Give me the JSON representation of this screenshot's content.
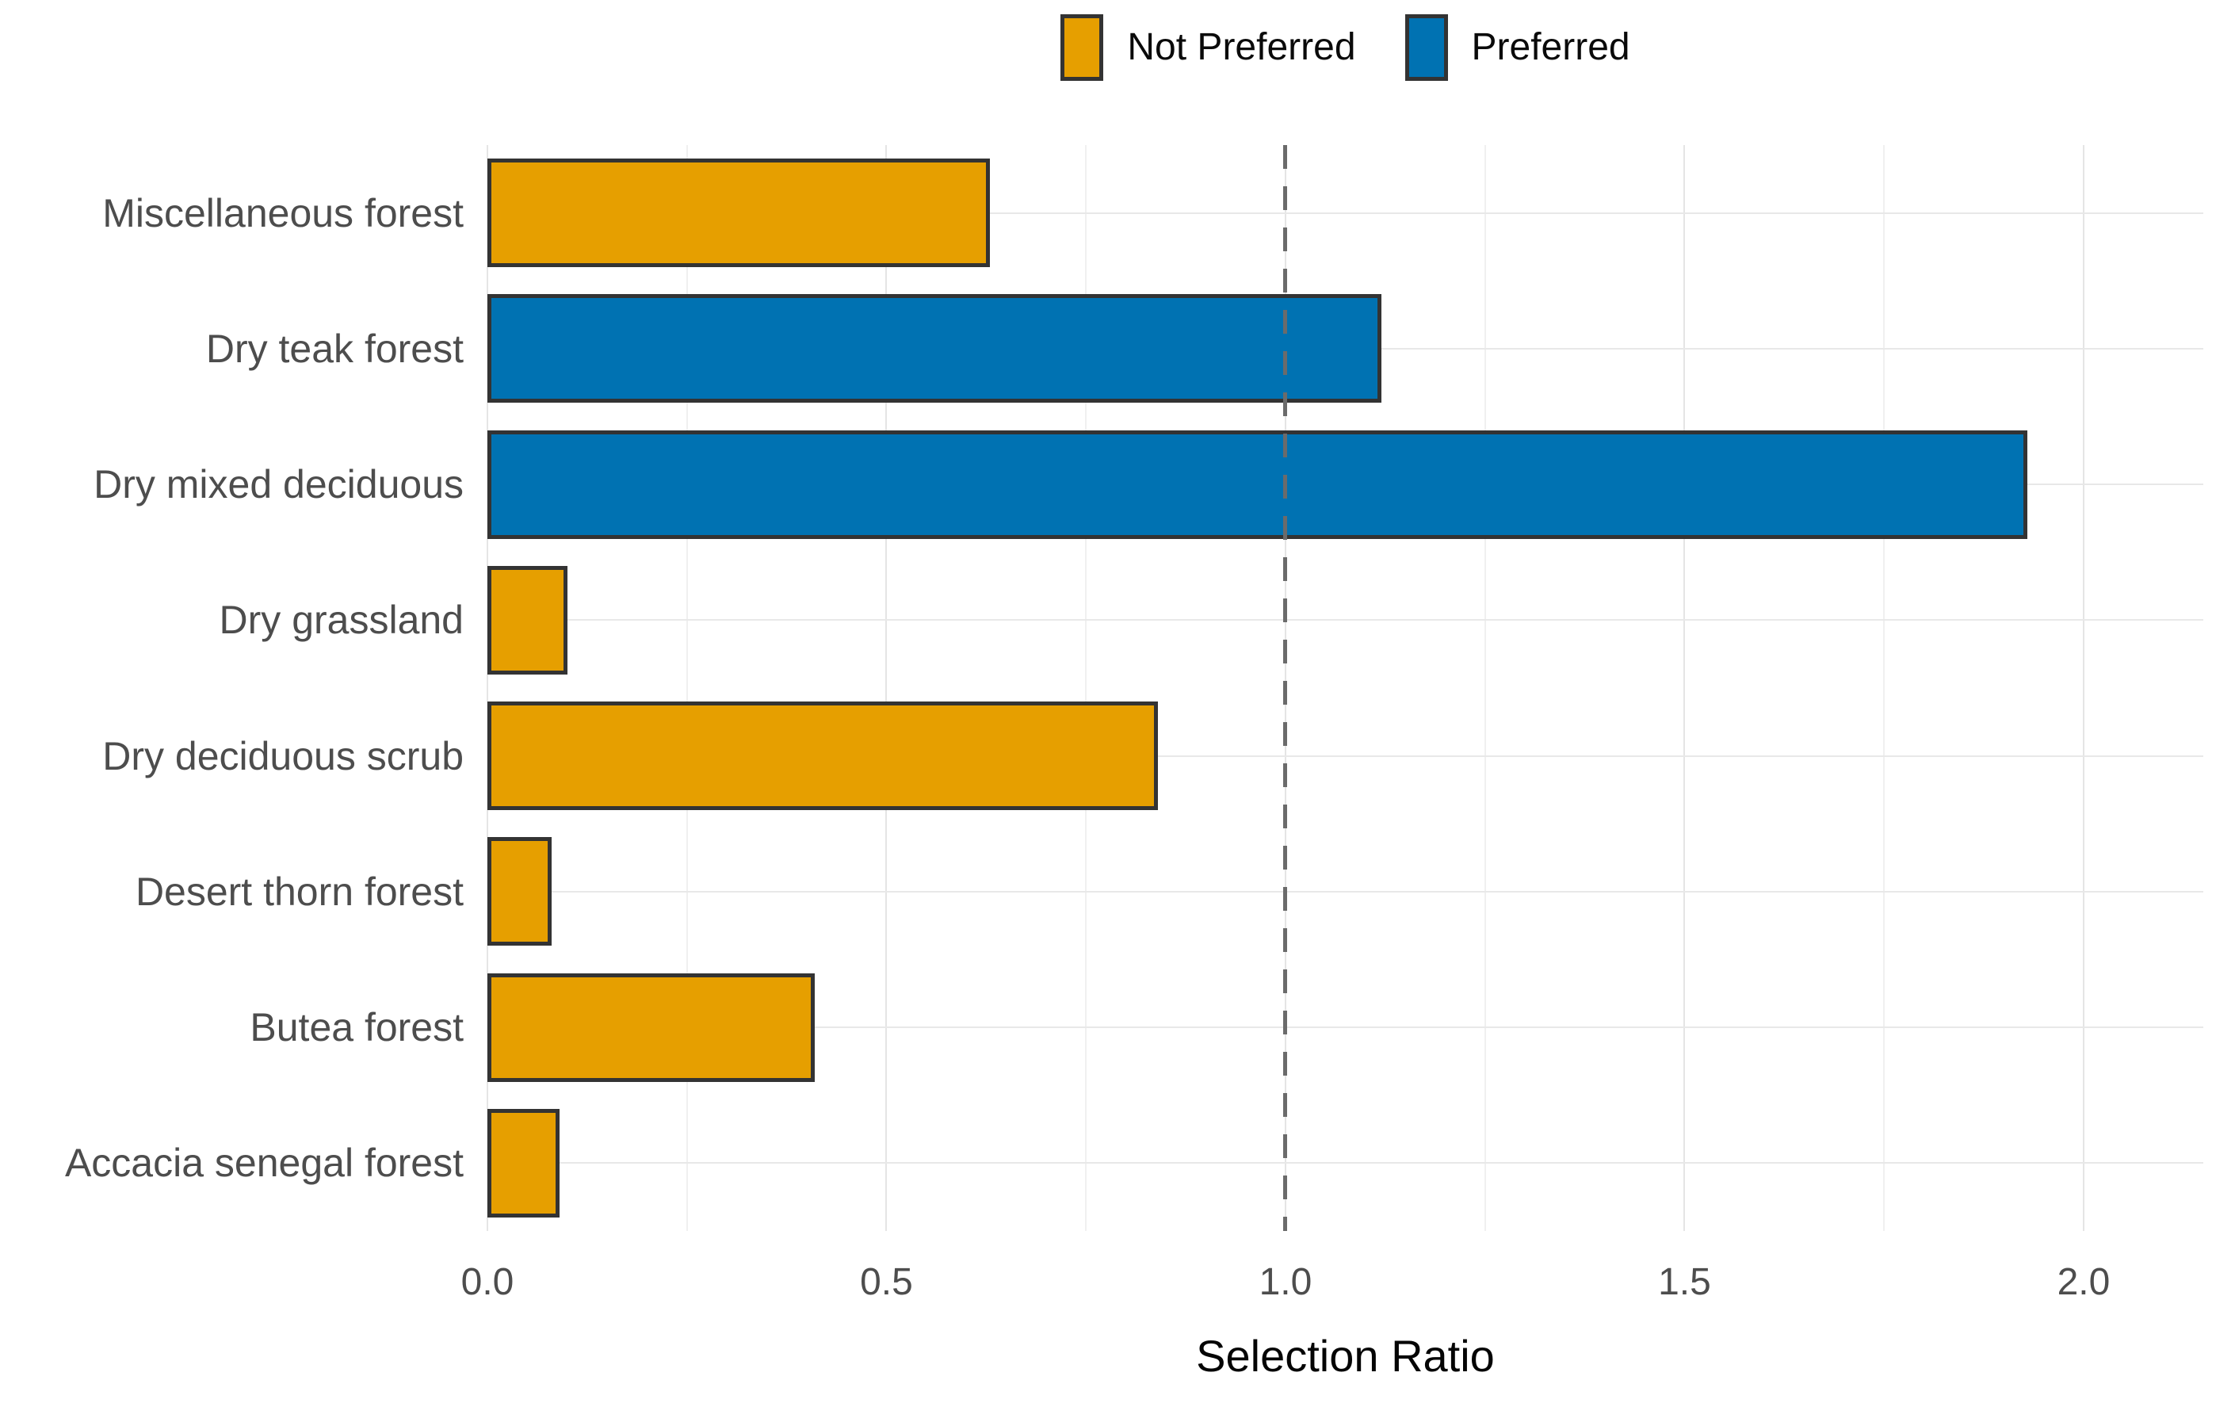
{
  "chart_data": {
    "type": "bar",
    "orientation": "horizontal",
    "title": "",
    "xlabel": "Selection Ratio",
    "ylabel": "",
    "categories": [
      "Miscellaneous forest",
      "Dry teak forest",
      "Dry mixed deciduous",
      "Dry grassland",
      "Dry deciduous scrub",
      "Desert thorn forest",
      "Butea forest",
      "Accacia senegal forest"
    ],
    "values": [
      0.63,
      1.12,
      1.93,
      0.1,
      0.84,
      0.08,
      0.41,
      0.09
    ],
    "groups": [
      "Not Preferred",
      "Preferred",
      "Preferred",
      "Not Preferred",
      "Not Preferred",
      "Not Preferred",
      "Not Preferred",
      "Not Preferred"
    ],
    "legend": [
      {
        "label": "Not Preferred",
        "color": "#E69F00"
      },
      {
        "label": "Preferred",
        "color": "#0072B2"
      }
    ],
    "legend_position": "top",
    "grid": true,
    "xlim": [
      0,
      2.15
    ],
    "x_ticks": [
      {
        "value": 0.0,
        "label": "0.0"
      },
      {
        "value": 0.5,
        "label": "0.5"
      },
      {
        "value": 1.0,
        "label": "1.0"
      },
      {
        "value": 1.5,
        "label": "1.5"
      },
      {
        "value": 2.0,
        "label": "2.0"
      }
    ],
    "x_minor_ticks": [
      0.25,
      0.75,
      1.25,
      1.75
    ],
    "reference_line": 1.0,
    "colors": {
      "bar_border": "#333333",
      "reference_line": "#6B6B6B",
      "grid_major": "#E5E5E5",
      "grid_minor": "#F0F0F0",
      "axis_text": "#4D4D4D",
      "title_text": "#050505"
    }
  }
}
